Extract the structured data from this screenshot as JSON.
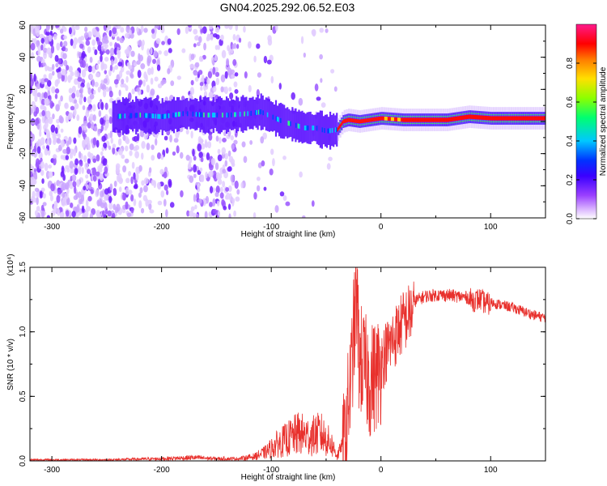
{
  "chart_data": [
    {
      "type": "heatmap",
      "title": "GN04.2025.292.06.52.E03",
      "xlabel": "Height of straight line (km)",
      "ylabel": "Frequency (Hz)",
      "xlim": [
        -320,
        150
      ],
      "ylim": [
        -60,
        60
      ],
      "xticks": [
        -300,
        -200,
        -100,
        0,
        100
      ],
      "xtick_labels": [
        "-300",
        "-200",
        "-100",
        "0",
        "100"
      ],
      "yticks": [
        -60,
        -40,
        -20,
        0,
        20,
        40,
        60
      ],
      "ytick_labels": [
        "-60",
        "-40",
        "-20",
        "0",
        "20",
        "40",
        "60"
      ],
      "colorbar": {
        "label": "Normalized spectral amplitude",
        "range": [
          0.0,
          1.0
        ],
        "ticks": [
          0.0,
          0.2,
          0.4,
          0.6,
          0.8
        ],
        "tick_labels": [
          "0.0",
          "0.2",
          "0.4",
          "0.6",
          "0.8"
        ],
        "colors": [
          "#ffffff",
          "#b77aff",
          "#6a00ff",
          "#0000ff",
          "#00c8ff",
          "#00ff60",
          "#c8ff00",
          "#ff9900",
          "#ff0000",
          "#ff0080"
        ]
      },
      "ridge": {
        "x": [
          -245,
          -220,
          -200,
          -180,
          -160,
          -140,
          -120,
          -110,
          -100,
          -90,
          -80,
          -70,
          -60,
          -50,
          -40,
          -35,
          -30,
          -20,
          -10,
          0,
          20,
          40,
          60,
          80,
          100,
          120,
          150
        ],
        "freq": [
          3,
          4,
          3,
          5,
          4,
          4,
          5,
          6,
          3,
          0,
          -2,
          -4,
          -4,
          -6,
          -5,
          0,
          1,
          0,
          1,
          2,
          1,
          1,
          1,
          3,
          2,
          2,
          2
        ]
      }
    },
    {
      "type": "line",
      "title": "",
      "xlabel": "Height of straight line (km)",
      "ylabel": "SNR (10 * v/v)",
      "y_multiplier": "(x10⁴)",
      "xlim": [
        -320,
        150
      ],
      "ylim": [
        0,
        1.5
      ],
      "xticks": [
        -300,
        -200,
        -100,
        0,
        100
      ],
      "xtick_labels": [
        "-300",
        "-200",
        "-100",
        "0",
        "100"
      ],
      "yticks": [
        0.0,
        0.5,
        1.0,
        1.5
      ],
      "ytick_labels": [
        "0.0",
        "0.5",
        "1.0",
        "1.5"
      ],
      "color": "#e8302c",
      "series": [
        {
          "name": "SNR",
          "x": [
            -320,
            -250,
            -200,
            -170,
            -150,
            -130,
            -115,
            -105,
            -95,
            -85,
            -75,
            -65,
            -55,
            -45,
            -40,
            -35,
            -30,
            -27,
            -25,
            -22,
            -20,
            -15,
            -10,
            -5,
            0,
            10,
            20,
            30,
            40,
            50,
            60,
            70,
            80,
            85,
            90,
            95,
            100,
            110,
            120,
            130,
            140,
            150
          ],
          "values": [
            0.01,
            0.01,
            0.02,
            0.03,
            0.02,
            0.02,
            0.04,
            0.08,
            0.15,
            0.2,
            0.25,
            0.22,
            0.25,
            0.15,
            0.05,
            0.15,
            0.55,
            0.8,
            1.1,
            1.4,
            0.95,
            0.85,
            0.75,
            0.8,
            0.85,
            1.0,
            1.15,
            1.25,
            1.29,
            1.3,
            1.3,
            1.29,
            1.28,
            1.27,
            1.28,
            1.25,
            1.24,
            1.22,
            1.2,
            1.17,
            1.14,
            1.12
          ]
        }
      ]
    }
  ]
}
